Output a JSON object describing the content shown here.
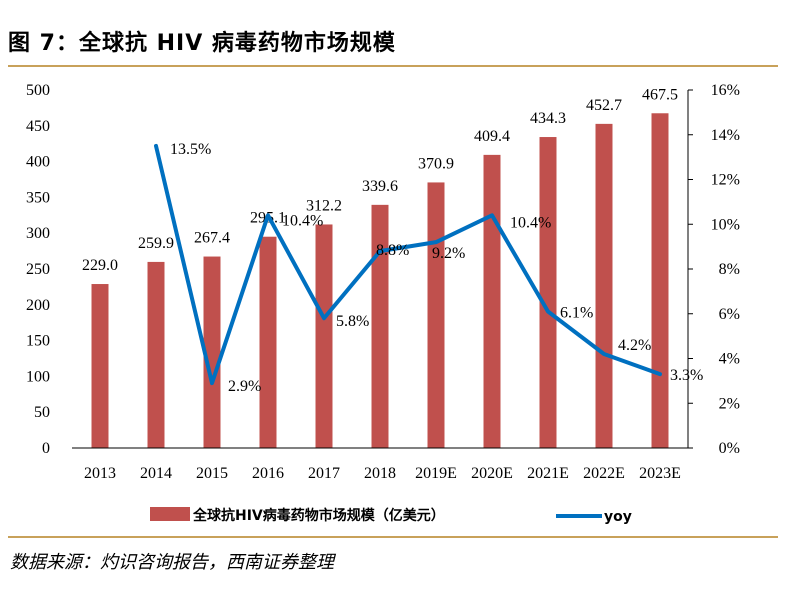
{
  "header": {
    "title": "图 7：全球抗 HIV 病毒药物市场规模"
  },
  "footer": {
    "source": "数据来源：灼识咨询报告，西南证券整理"
  },
  "colors": {
    "bar": "#c0504d",
    "line": "#0070c0",
    "rule": "#c8a15a"
  },
  "chart_data": {
    "type": "bar",
    "categories": [
      "2013",
      "2014",
      "2015",
      "2016",
      "2017",
      "2018",
      "2019E",
      "2020E",
      "2021E",
      "2022E",
      "2023E"
    ],
    "series": [
      {
        "name": "全球抗HIV病毒药物市场规模（亿美元）",
        "type": "bar",
        "axis": "left",
        "values": [
          229.0,
          259.9,
          267.4,
          295.1,
          312.2,
          339.6,
          370.9,
          409.4,
          434.3,
          452.7,
          467.5
        ],
        "labels": [
          "229.0",
          "259.9",
          "267.4",
          "295.1",
          "312.2",
          "339.6",
          "370.9",
          "409.4",
          "434.3",
          "452.7",
          "467.5"
        ]
      },
      {
        "name": "yoy",
        "type": "line",
        "axis": "right",
        "values": [
          null,
          13.5,
          2.9,
          10.4,
          5.8,
          8.8,
          9.2,
          10.4,
          6.1,
          4.2,
          3.3
        ],
        "labels": [
          null,
          "13.5%",
          "2.9%",
          "10.4%",
          "5.8%",
          "8.8%",
          "9.2%",
          "10.4%",
          "6.1%",
          "4.2%",
          "3.3%"
        ]
      }
    ],
    "ylim": [
      0,
      500
    ],
    "yticks": [
      "0",
      "50",
      "100",
      "150",
      "200",
      "250",
      "300",
      "350",
      "400",
      "450",
      "500"
    ],
    "y2lim": [
      0,
      16
    ],
    "y2ticks": [
      "0%",
      "2%",
      "4%",
      "6%",
      "8%",
      "10%",
      "12%",
      "14%",
      "16%"
    ],
    "legend": {
      "placement": "bottom",
      "bar_label": "全球抗HIV病毒药物市场规模（亿美元）",
      "line_label": "yoy"
    }
  }
}
